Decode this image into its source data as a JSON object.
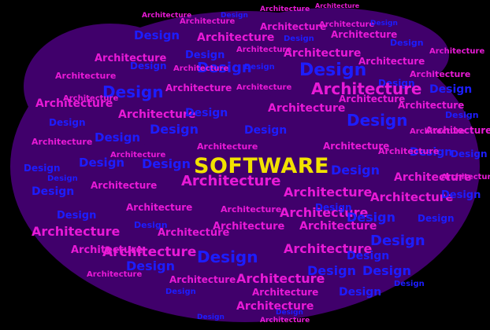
{
  "center_word": "SOFTWARE",
  "word_a": "Design",
  "word_b": "Architecture",
  "colors": {
    "background": "#000000",
    "cloud_shape": "#40006b",
    "word_a": "#1d1dff",
    "word_b": "#e81ad6",
    "center_word": "#f2e200"
  }
}
